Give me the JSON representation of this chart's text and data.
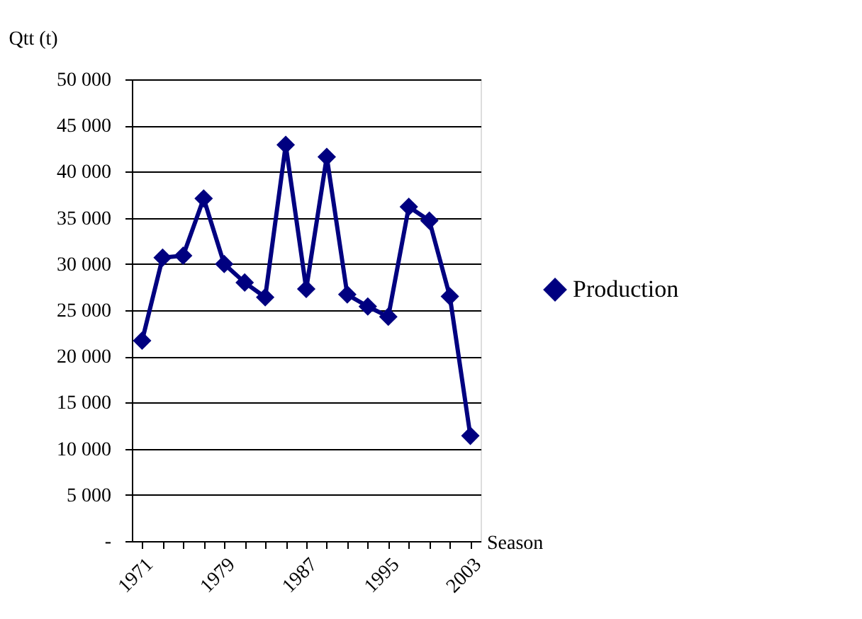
{
  "chart_data": {
    "type": "line",
    "xlabel": "Season",
    "ylabel": "Qtt (t)",
    "categories": [
      "1971",
      null,
      null,
      null,
      "1979",
      null,
      null,
      null,
      "1987",
      null,
      null,
      null,
      "1995",
      null,
      null,
      null,
      "2003"
    ],
    "series": [
      {
        "name": "Production",
        "color": "#000080",
        "values": [
          21700,
          30700,
          30900,
          37100,
          30000,
          28000,
          26400,
          42900,
          27300,
          41600,
          26700,
          25400,
          24300,
          36200,
          34700,
          26500,
          11400
        ]
      }
    ],
    "ylim": [
      0,
      50000
    ],
    "yticks": [
      {
        "value": 0,
        "label": "-"
      },
      {
        "value": 5000,
        "label": "5 000"
      },
      {
        "value": 10000,
        "label": "10 000"
      },
      {
        "value": 15000,
        "label": "15 000"
      },
      {
        "value": 20000,
        "label": "20 000"
      },
      {
        "value": 25000,
        "label": "25 000"
      },
      {
        "value": 30000,
        "label": "30 000"
      },
      {
        "value": 35000,
        "label": "35 000"
      },
      {
        "value": 40000,
        "label": "40 000"
      },
      {
        "value": 45000,
        "label": "45 000"
      },
      {
        "value": 50000,
        "label": "50 000"
      }
    ],
    "grid": "y",
    "legend": "right",
    "marker": "diamond",
    "line_style": "solid"
  }
}
